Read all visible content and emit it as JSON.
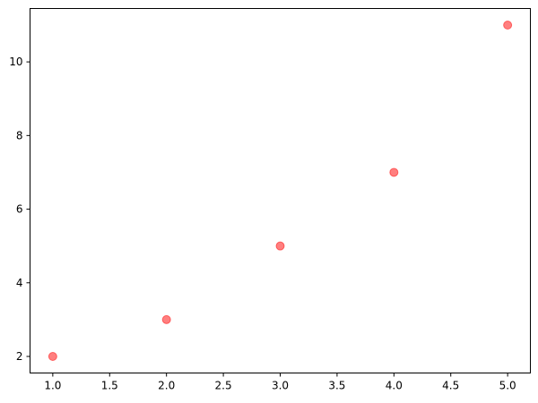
{
  "chart_data": {
    "type": "scatter",
    "title": "",
    "xlabel": "",
    "ylabel": "",
    "x": [
      1,
      2,
      3,
      4,
      5
    ],
    "y": [
      2,
      3,
      5,
      7,
      11
    ],
    "xlim": [
      0.8,
      5.2
    ],
    "ylim": [
      1.55,
      11.45
    ],
    "xticks": [
      "1.0",
      "1.5",
      "2.0",
      "2.5",
      "3.0",
      "3.5",
      "4.0",
      "4.5",
      "5.0"
    ],
    "yticks": [
      "2",
      "4",
      "6",
      "8",
      "10"
    ],
    "grid": false,
    "marker_color": "#ff0000",
    "marker_alpha": 0.5
  }
}
